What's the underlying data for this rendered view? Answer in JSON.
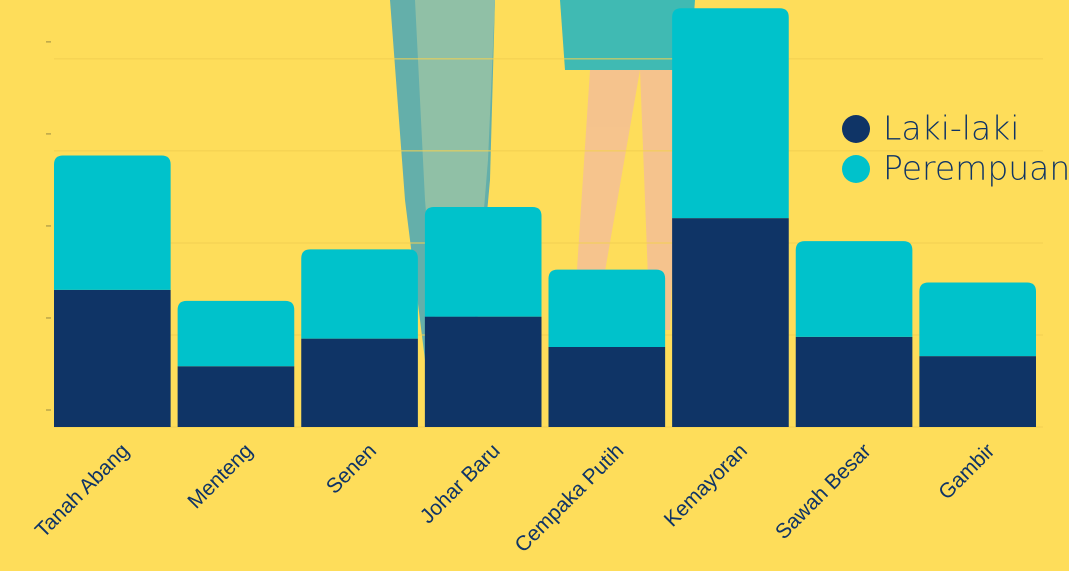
{
  "chart_data": {
    "type": "stacked-bar",
    "categories": [
      "Tanah Abang",
      "Menteng",
      "Senen",
      "Johar Baru",
      "Cempaka Putih",
      "Kemayoran",
      "Sawah Besar",
      "Gambir"
    ],
    "series": [
      {
        "name": "Laki-laki",
        "color": "#0f3466",
        "values": [
          1.49,
          0.66,
          0.96,
          1.2,
          0.87,
          2.27,
          0.98,
          0.77
        ]
      },
      {
        "name": "Perempuan",
        "color": "#00c2cb",
        "values": [
          1.46,
          0.71,
          0.97,
          1.19,
          0.84,
          2.28,
          1.04,
          0.8
        ]
      }
    ],
    "ylim": [
      0,
      4.64
    ],
    "yticks": [
      0,
      1,
      2,
      3,
      4
    ],
    "grid": true,
    "legend": "upper right"
  }
}
